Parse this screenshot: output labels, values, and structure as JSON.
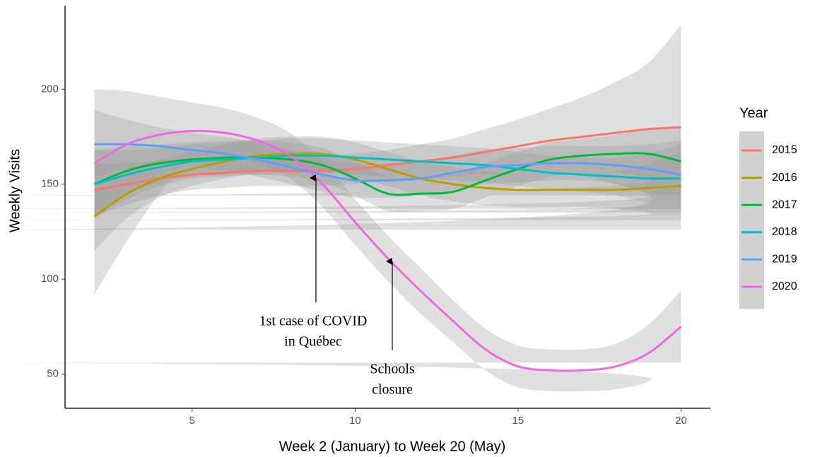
{
  "chart_data": {
    "type": "line",
    "xlabel": "Week 2 (January) to Week 20 (May)",
    "ylabel": "Weekly Visits",
    "legend_title": "Year",
    "legend": "right",
    "x": [
      2,
      3,
      4,
      5,
      6,
      7,
      8,
      9,
      10,
      11,
      12,
      13,
      14,
      15,
      16,
      17,
      18,
      19,
      20
    ],
    "xlim": [
      1.1,
      20.9
    ],
    "xticks": [
      5,
      10,
      15,
      20
    ],
    "ylim": [
      32,
      244
    ],
    "yticks": [
      50,
      100,
      150,
      200
    ],
    "band_color": "#999999",
    "series": [
      {
        "name": "2015",
        "color": "#F8766D",
        "values": [
          147,
          150,
          153,
          155,
          156,
          157,
          157,
          157,
          158,
          160,
          162,
          164,
          167,
          170,
          173,
          175,
          177,
          179,
          180
        ],
        "upper": [
          161,
          161,
          162,
          163,
          164,
          165,
          165,
          165,
          166,
          168,
          171,
          174,
          179,
          184,
          190,
          196,
          204,
          214,
          234
        ],
        "lower": [
          133,
          139,
          144,
          147,
          148,
          149,
          149,
          149,
          150,
          152,
          153,
          154,
          155,
          156,
          156,
          154,
          150,
          144,
          126
        ]
      },
      {
        "name": "2016",
        "color": "#B79F00",
        "values": [
          133,
          145,
          153,
          158,
          162,
          165,
          166,
          166,
          163,
          158,
          153,
          150,
          148,
          147,
          147,
          147,
          147,
          148,
          149
        ],
        "upper": [
          151,
          158,
          163,
          167,
          171,
          174,
          175,
          175,
          172,
          167,
          162,
          159,
          157,
          156,
          156,
          156,
          157,
          161,
          167
        ],
        "lower": [
          115,
          132,
          143,
          149,
          153,
          156,
          157,
          157,
          154,
          149,
          144,
          141,
          139,
          138,
          138,
          138,
          137,
          135,
          131
        ]
      },
      {
        "name": "2017",
        "color": "#00BA38",
        "values": [
          150,
          157,
          161,
          163,
          164,
          164,
          163,
          160,
          153,
          145,
          145,
          146,
          152,
          158,
          163,
          165,
          166,
          166,
          162
        ],
        "upper": [
          168,
          170,
          171,
          172,
          173,
          173,
          172,
          169,
          162,
          154,
          154,
          155,
          161,
          167,
          172,
          174,
          176,
          179,
          180
        ],
        "lower": [
          132,
          144,
          151,
          154,
          155,
          155,
          154,
          151,
          144,
          136,
          136,
          137,
          143,
          149,
          154,
          156,
          156,
          153,
          144
        ]
      },
      {
        "name": "2018",
        "color": "#00BFC4",
        "values": [
          150,
          155,
          159,
          162,
          163,
          164,
          165,
          165,
          164,
          163,
          162,
          161,
          160,
          158,
          156,
          155,
          154,
          153,
          153
        ],
        "upper": [
          168,
          168,
          169,
          171,
          172,
          173,
          174,
          174,
          173,
          172,
          171,
          170,
          169,
          167,
          165,
          164,
          164,
          166,
          171
        ],
        "lower": [
          132,
          142,
          149,
          153,
          154,
          155,
          156,
          156,
          155,
          154,
          153,
          152,
          151,
          149,
          147,
          146,
          144,
          140,
          135
        ]
      },
      {
        "name": "2019",
        "color": "#619CFF",
        "values": [
          171,
          171,
          170,
          168,
          166,
          163,
          159,
          155,
          152,
          152,
          153,
          156,
          159,
          160,
          161,
          161,
          160,
          158,
          155
        ],
        "upper": [
          189,
          184,
          180,
          177,
          175,
          172,
          168,
          164,
          161,
          161,
          162,
          165,
          168,
          169,
          170,
          170,
          170,
          171,
          173
        ],
        "lower": [
          153,
          158,
          160,
          159,
          157,
          154,
          150,
          146,
          143,
          143,
          144,
          147,
          150,
          151,
          152,
          152,
          150,
          145,
          137
        ]
      },
      {
        "name": "2020",
        "color": "#F564E3",
        "values": [
          161,
          171,
          176,
          178,
          177,
          173,
          165,
          150,
          130,
          111,
          94,
          78,
          63,
          54,
          52,
          52,
          54,
          61,
          75
        ],
        "upper": [
          200,
          199,
          196,
          193,
          190,
          185,
          177,
          162,
          142,
          123,
          106,
          89,
          74,
          65,
          63,
          63,
          66,
          76,
          94
        ],
        "lower": [
          92,
          120,
          145,
          163,
          164,
          161,
          153,
          138,
          118,
          99,
          82,
          67,
          52,
          43,
          41,
          41,
          42,
          46,
          56
        ]
      }
    ],
    "annotations": [
      {
        "lines": [
          "1st case of COVID",
          "in Québec"
        ]
      },
      {
        "lines": [
          "Schools",
          "closure"
        ]
      }
    ]
  }
}
